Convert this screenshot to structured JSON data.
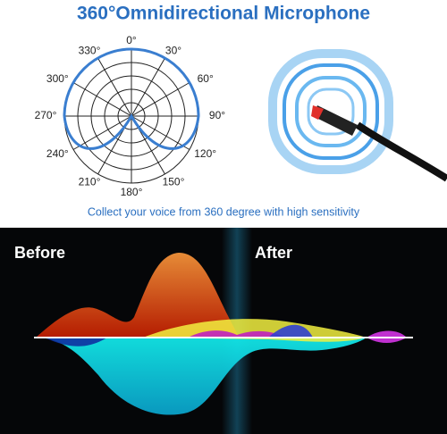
{
  "title": "360°Omnidirectional Microphone",
  "polar": {
    "angle_labels": [
      "0°",
      "30°",
      "60°",
      "90°",
      "120°",
      "150°",
      "180°",
      "210°",
      "240°",
      "270°",
      "300°",
      "330°"
    ]
  },
  "caption": "Collect your voice from 360 degree with high sensitivity",
  "panels": {
    "before": "Before",
    "after": "After"
  }
}
